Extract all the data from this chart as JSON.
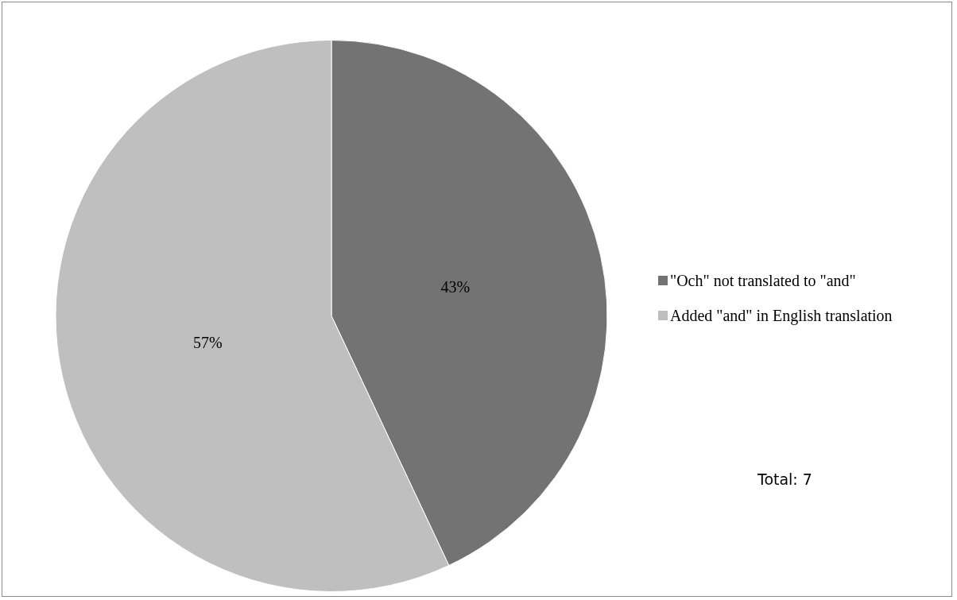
{
  "chart_data": {
    "type": "pie",
    "categories": [
      "\"Och\" not translated to \"and\"",
      "Added \"and\" in English translation"
    ],
    "values": [
      43,
      57
    ],
    "colors": [
      "#737373",
      "#bfbfbf"
    ],
    "value_labels": [
      "43%",
      "57%"
    ],
    "legend": "right",
    "annotations": [
      "Total: 7"
    ]
  }
}
